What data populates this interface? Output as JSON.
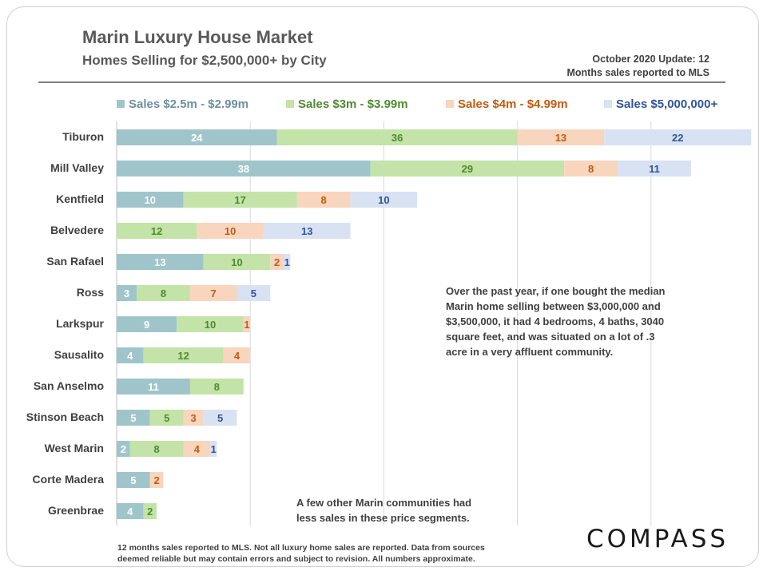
{
  "header": {
    "title": "Marin Luxury House Market",
    "subtitle": "Homes Selling for $2,500,000+ by City",
    "update_line1": "October 2020 Update: 12",
    "update_line2": "Months sales reported to MLS"
  },
  "notes": {
    "median_line1": "Over the past year, if one bought the median",
    "median_line2": "Marin home selling between $3,000,000 and",
    "median_line3": "$3,500,000, it had 4 bedrooms, 4 baths, 3040",
    "median_line4": "square feet, and was situated on a lot of .3",
    "median_line5": "acre in a very affluent community.",
    "others_line1": "A few other Marin communities had",
    "others_line2": "less sales in these price segments."
  },
  "footer": {
    "line1": "12 months sales reported to MLS. Not all luxury home sales are reported. Data from sources",
    "line2": "deemed reliable but may contain errors and subject to revision. All numbers approximate."
  },
  "logo": "COMPASS",
  "chart_data": {
    "type": "bar",
    "orientation": "horizontal",
    "stacked": true,
    "categories": [
      "Tiburon",
      "Mill Valley",
      "Kentfield",
      "Belvedere",
      "San Rafael",
      "Ross",
      "Larkspur",
      "Sausalito",
      "San Anselmo",
      "Stinson Beach",
      "West Marin",
      "Corte Madera",
      "Greenbrae"
    ],
    "series": [
      {
        "name": "Sales $2.5m - $2.99m",
        "bar_color": "#9fc5cb",
        "label_color": "#ffffff",
        "legend_color": "#6e8fa0",
        "values": [
          24,
          38,
          10,
          null,
          13,
          3,
          9,
          4,
          11,
          5,
          2,
          5,
          4
        ]
      },
      {
        "name": "Sales $3m - $3.99m",
        "bar_color": "#c3e3a8",
        "label_color": "#4f8a2e",
        "legend_color": "#4f8a2e",
        "values": [
          36,
          29,
          17,
          12,
          10,
          8,
          10,
          12,
          8,
          5,
          8,
          null,
          2
        ]
      },
      {
        "name": "Sales $4m - $4.99m",
        "bar_color": "#f8d5bd",
        "label_color": "#c55a11",
        "legend_color": "#c55a11",
        "values": [
          13,
          8,
          8,
          10,
          2,
          7,
          1,
          4,
          null,
          3,
          4,
          2,
          null
        ]
      },
      {
        "name": "Sales $5,000,000+",
        "bar_color": "#d9e2f3",
        "label_color": "#2f5597",
        "legend_color": "#2f5597",
        "values": [
          22,
          11,
          10,
          13,
          1,
          5,
          null,
          null,
          null,
          5,
          1,
          null,
          null
        ]
      }
    ],
    "xlim": [
      0,
      95
    ],
    "grid": true,
    "legend_position": "top"
  }
}
